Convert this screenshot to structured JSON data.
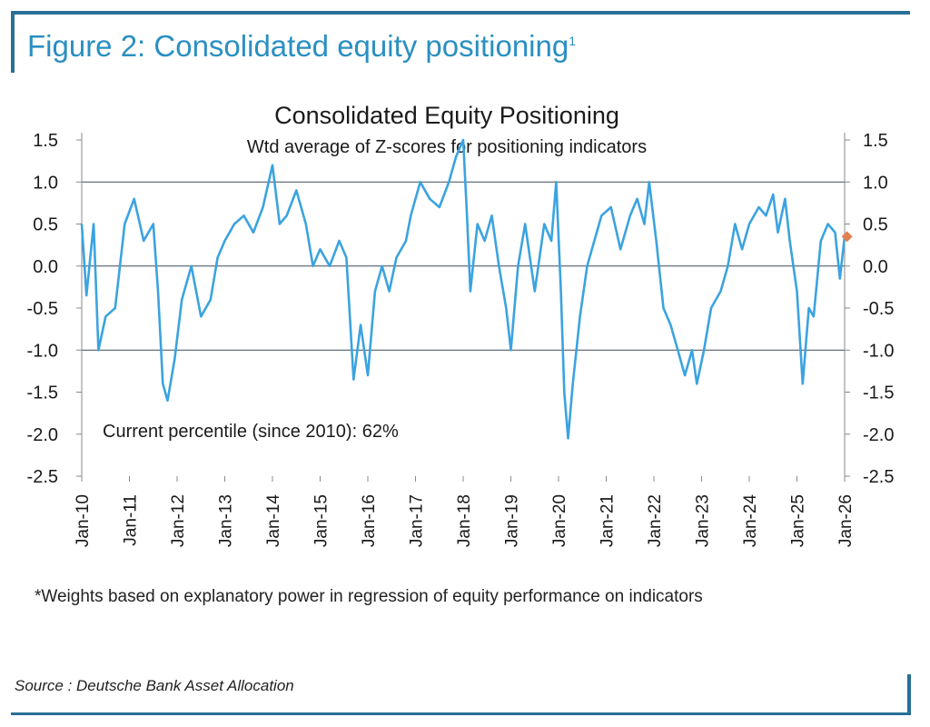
{
  "figure": {
    "title": "Figure 2: Consolidated equity positioning",
    "title_sup": "1",
    "footnote": "*Weights based on explanatory power in regression of equity performance on indicators",
    "source": "Source : Deutsche Bank Asset Allocation"
  },
  "chart_data": {
    "type": "line",
    "title": "Consolidated Equity Positioning",
    "subtitle": "Wtd average of Z-scores for positioning indicators",
    "annotation": "Current percentile (since 2010): 62%",
    "ylim": [
      -2.5,
      1.5
    ],
    "yticks": [
      "1.5",
      "1.0",
      "0.5",
      "0.0",
      "-0.5",
      "-1.0",
      "-1.5",
      "-2.0",
      "-2.5"
    ],
    "gridlines": [
      1.0,
      0.0,
      -1.0
    ],
    "xlim": [
      2010,
      2026
    ],
    "xticks": [
      "Jan-10",
      "Jan-11",
      "Jan-12",
      "Jan-13",
      "Jan-14",
      "Jan-15",
      "Jan-16",
      "Jan-17",
      "Jan-18",
      "Jan-19",
      "Jan-20",
      "Jan-21",
      "Jan-22",
      "Jan-23",
      "Jan-24",
      "Jan-25",
      "Jan-26"
    ],
    "series": [
      {
        "name": "Consolidated Equity Positioning",
        "color": "#3ba3e0",
        "points": [
          [
            2010.0,
            0.5
          ],
          [
            2010.1,
            -0.35
          ],
          [
            2010.25,
            0.5
          ],
          [
            2010.35,
            -1.0
          ],
          [
            2010.5,
            -0.6
          ],
          [
            2010.7,
            -0.5
          ],
          [
            2010.9,
            0.5
          ],
          [
            2011.1,
            0.8
          ],
          [
            2011.3,
            0.3
          ],
          [
            2011.5,
            0.5
          ],
          [
            2011.6,
            -0.3
          ],
          [
            2011.7,
            -1.4
          ],
          [
            2011.8,
            -1.6
          ],
          [
            2011.95,
            -1.1
          ],
          [
            2012.1,
            -0.4
          ],
          [
            2012.3,
            0.0
          ],
          [
            2012.5,
            -0.6
          ],
          [
            2012.7,
            -0.4
          ],
          [
            2012.85,
            0.1
          ],
          [
            2013.0,
            0.3
          ],
          [
            2013.2,
            0.5
          ],
          [
            2013.4,
            0.6
          ],
          [
            2013.6,
            0.4
          ],
          [
            2013.8,
            0.7
          ],
          [
            2014.0,
            1.2
          ],
          [
            2014.15,
            0.5
          ],
          [
            2014.3,
            0.6
          ],
          [
            2014.5,
            0.9
          ],
          [
            2014.7,
            0.5
          ],
          [
            2014.85,
            0.0
          ],
          [
            2015.0,
            0.2
          ],
          [
            2015.2,
            0.0
          ],
          [
            2015.4,
            0.3
          ],
          [
            2015.55,
            0.1
          ],
          [
            2015.7,
            -1.35
          ],
          [
            2015.85,
            -0.7
          ],
          [
            2016.0,
            -1.3
          ],
          [
            2016.15,
            -0.3
          ],
          [
            2016.3,
            0.0
          ],
          [
            2016.45,
            -0.3
          ],
          [
            2016.6,
            0.1
          ],
          [
            2016.8,
            0.3
          ],
          [
            2016.9,
            0.6
          ],
          [
            2017.1,
            1.0
          ],
          [
            2017.3,
            0.8
          ],
          [
            2017.5,
            0.7
          ],
          [
            2017.7,
            1.0
          ],
          [
            2017.85,
            1.3
          ],
          [
            2018.0,
            1.5
          ],
          [
            2018.08,
            0.6
          ],
          [
            2018.15,
            -0.3
          ],
          [
            2018.3,
            0.5
          ],
          [
            2018.45,
            0.3
          ],
          [
            2018.6,
            0.6
          ],
          [
            2018.75,
            0.0
          ],
          [
            2018.9,
            -0.5
          ],
          [
            2019.0,
            -1.0
          ],
          [
            2019.15,
            0.0
          ],
          [
            2019.3,
            0.5
          ],
          [
            2019.5,
            -0.3
          ],
          [
            2019.7,
            0.5
          ],
          [
            2019.85,
            0.3
          ],
          [
            2019.95,
            1.0
          ],
          [
            2020.05,
            -0.3
          ],
          [
            2020.12,
            -1.5
          ],
          [
            2020.2,
            -2.05
          ],
          [
            2020.3,
            -1.4
          ],
          [
            2020.45,
            -0.6
          ],
          [
            2020.6,
            0.0
          ],
          [
            2020.75,
            0.3
          ],
          [
            2020.9,
            0.6
          ],
          [
            2021.1,
            0.7
          ],
          [
            2021.3,
            0.2
          ],
          [
            2021.5,
            0.6
          ],
          [
            2021.65,
            0.8
          ],
          [
            2021.8,
            0.5
          ],
          [
            2021.9,
            1.0
          ],
          [
            2022.05,
            0.3
          ],
          [
            2022.2,
            -0.5
          ],
          [
            2022.35,
            -0.7
          ],
          [
            2022.5,
            -1.0
          ],
          [
            2022.65,
            -1.3
          ],
          [
            2022.8,
            -1.0
          ],
          [
            2022.9,
            -1.4
          ],
          [
            2023.05,
            -1.0
          ],
          [
            2023.2,
            -0.5
          ],
          [
            2023.4,
            -0.3
          ],
          [
            2023.55,
            0.0
          ],
          [
            2023.7,
            0.5
          ],
          [
            2023.85,
            0.2
          ],
          [
            2024.0,
            0.5
          ],
          [
            2024.2,
            0.7
          ],
          [
            2024.35,
            0.6
          ],
          [
            2024.5,
            0.85
          ],
          [
            2024.6,
            0.4
          ],
          [
            2024.75,
            0.8
          ],
          [
            2024.85,
            0.3
          ],
          [
            2025.0,
            -0.3
          ],
          [
            2025.12,
            -1.4
          ],
          [
            2025.25,
            -0.5
          ],
          [
            2025.35,
            -0.6
          ],
          [
            2025.5,
            0.3
          ],
          [
            2025.65,
            0.5
          ],
          [
            2025.8,
            0.4
          ],
          [
            2025.9,
            -0.15
          ],
          [
            2026.0,
            0.35
          ]
        ]
      }
    ],
    "current_marker": {
      "x": 2026.05,
      "y": 0.35,
      "color": "#e08050"
    }
  }
}
